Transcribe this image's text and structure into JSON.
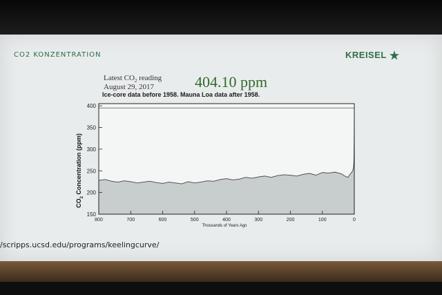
{
  "slide": {
    "title": "CO2 KONZENTRATION",
    "logo_text": "KREISEL",
    "url": "/scripps.ucsd.edu/programs/keelingcurve/"
  },
  "reading": {
    "label_main": "Latest CO",
    "label_sub": "2",
    "label_tail": " reading",
    "date": "August 29, 2017",
    "value": "404.10 ppm"
  },
  "colors": {
    "accent_green": "#2e6f4a",
    "value_green": "#2f6a2a",
    "fill_gray": "#c8cdcd"
  },
  "chart_data": {
    "type": "area",
    "subtitle": "Ice-core data before 1958. Mauna Loa data after 1958.",
    "ylabel_main": "CO",
    "ylabel_sub": "2",
    "ylabel_tail": " Concentration (ppm)",
    "xlabel": "Thousands of Years Ago",
    "xlim": [
      800,
      0
    ],
    "ylim": [
      150,
      405
    ],
    "x_ticks": [
      "800",
      "700",
      "600",
      "500",
      "400",
      "300",
      "200",
      "100",
      "0"
    ],
    "y_ticks": [
      "150",
      "200",
      "250",
      "300",
      "350",
      "400"
    ],
    "reference_line": 395,
    "series": [
      {
        "x": [
          800,
          780,
          760,
          740,
          720,
          700,
          680,
          660,
          640,
          620,
          600,
          580,
          560,
          540,
          520,
          500,
          480,
          460,
          440,
          420,
          400,
          380,
          360,
          340,
          320,
          300,
          280,
          260,
          240,
          220,
          200,
          180,
          160,
          140,
          120,
          100,
          80,
          60,
          40,
          30,
          20,
          15,
          10,
          5,
          2,
          1,
          0.5,
          0.1,
          0
        ],
        "y": [
          228,
          230,
          226,
          224,
          227,
          225,
          222,
          224,
          226,
          223,
          221,
          224,
          222,
          220,
          225,
          222,
          224,
          227,
          226,
          230,
          232,
          229,
          231,
          235,
          233,
          236,
          238,
          235,
          239,
          241,
          240,
          238,
          242,
          244,
          240,
          246,
          245,
          247,
          243,
          238,
          235,
          240,
          245,
          250,
          260,
          280,
          320,
          370,
          404
        ]
      }
    ]
  }
}
